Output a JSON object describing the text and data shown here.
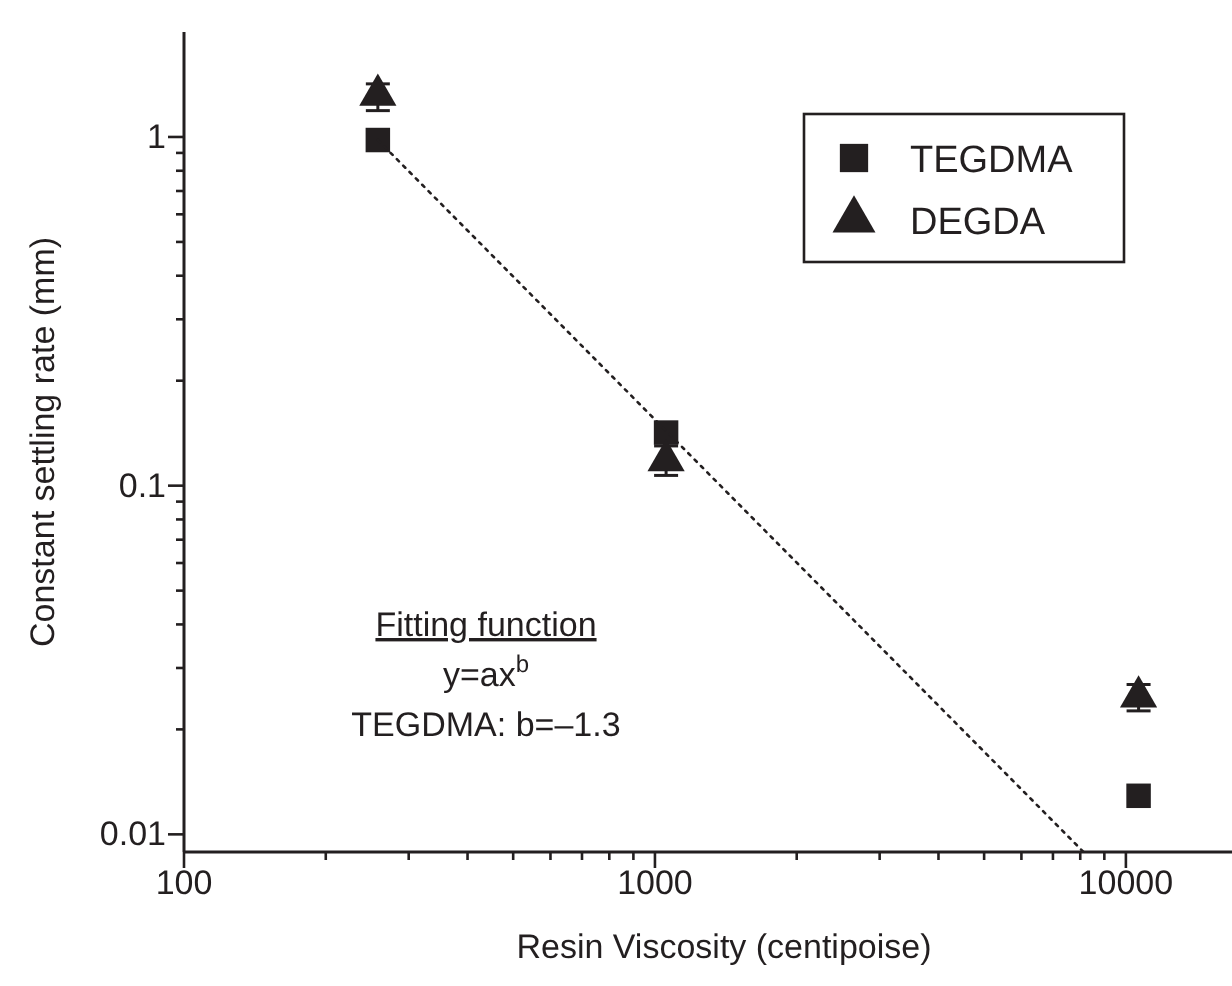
{
  "chart_data": {
    "type": "scatter",
    "xlabel": "Resin Viscosity (centipoise)",
    "ylabel": "Constant settling rate (mm)",
    "log": "xy",
    "grid": false,
    "legend": "top right",
    "xlim": [
      100,
      16800
    ],
    "ylim": [
      0.0089,
      2.0
    ],
    "xticks": [
      100,
      {
        "value": 200,
        "label": null
      },
      {
        "value": 300,
        "label": null
      },
      {
        "value": 400,
        "label": null
      },
      {
        "value": 500,
        "label": null
      },
      {
        "value": 600,
        "label": null
      },
      {
        "value": 700,
        "label": null
      },
      {
        "value": 800,
        "label": null
      },
      {
        "value": 900,
        "label": null
      },
      1000,
      {
        "value": 2000,
        "label": null
      },
      {
        "value": 3000,
        "label": null
      },
      {
        "value": 4000,
        "label": null
      },
      {
        "value": 5000,
        "label": null
      },
      {
        "value": 6000,
        "label": null
      },
      {
        "value": 7000,
        "label": null
      },
      {
        "value": 8000,
        "label": null
      },
      {
        "value": 9000,
        "label": null
      },
      10000
    ],
    "yticks": [
      0.01,
      {
        "value": 0.02,
        "label": null
      },
      {
        "value": 0.03,
        "label": null
      },
      {
        "value": 0.04,
        "label": null
      },
      {
        "value": 0.05,
        "label": null
      },
      {
        "value": 0.06,
        "label": null
      },
      {
        "value": 0.07,
        "label": null
      },
      {
        "value": 0.08,
        "label": null
      },
      {
        "value": 0.09,
        "label": null
      },
      0.1,
      {
        "value": 0.2,
        "label": null
      },
      {
        "value": 0.3,
        "label": null
      },
      {
        "value": 0.4,
        "label": null
      },
      {
        "value": 0.5,
        "label": null
      },
      {
        "value": 0.6,
        "label": null
      },
      {
        "value": 0.7,
        "label": null
      },
      {
        "value": 0.8,
        "label": null
      },
      {
        "value": 0.9,
        "label": null
      },
      1
    ],
    "series": [
      {
        "name": "TEGDMA",
        "color": "#231f20",
        "marker": "square",
        "x": [
          258,
          1056,
          10640
        ],
        "values": [
          0.98,
          0.142,
          0.0129
        ]
      },
      {
        "name": "DEGDA",
        "color": "#231f20",
        "marker": "triangle",
        "x": [
          258,
          1056,
          10640
        ],
        "values": [
          1.32,
          0.118,
          0.0248
        ],
        "errors": [
          [
            1.19,
            1.42
          ],
          [
            0.107,
            0.13
          ],
          [
            0.0226,
            0.0269
          ]
        ]
      },
      {
        "type": "line",
        "color": "#231f20",
        "marker": "none",
        "line_style": "dotted",
        "x": [
          258,
          8130
        ],
        "values": [
          0.98,
          0.0089
        ]
      }
    ],
    "annotations": [
      "Fitting function",
      "y=ax$^{b}$",
      "TEGDMA: b=–1.3"
    ]
  }
}
